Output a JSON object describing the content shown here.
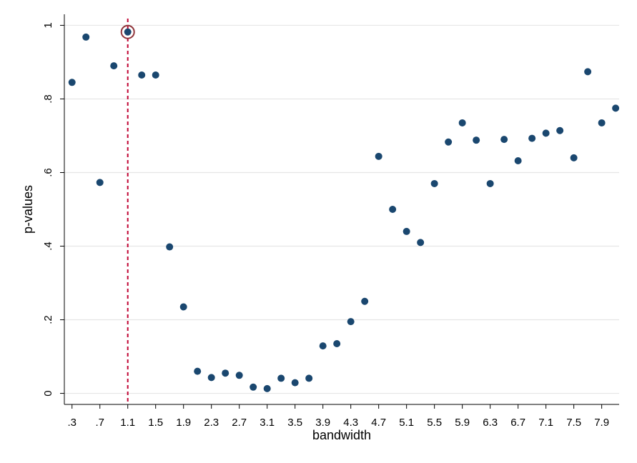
{
  "chart_data": {
    "type": "scatter",
    "xlabel": "bandwidth",
    "ylabel": "p-values",
    "xlim": [
      0.19,
      8.15
    ],
    "ylim": [
      -0.03,
      1.03
    ],
    "x_ticks": [
      {
        "value": 0.3,
        "label": ".3"
      },
      {
        "value": 0.7,
        "label": ".7"
      },
      {
        "value": 1.1,
        "label": "1.1"
      },
      {
        "value": 1.5,
        "label": "1.5"
      },
      {
        "value": 1.9,
        "label": "1.9"
      },
      {
        "value": 2.3,
        "label": "2.3"
      },
      {
        "value": 2.7,
        "label": "2.7"
      },
      {
        "value": 3.1,
        "label": "3.1"
      },
      {
        "value": 3.5,
        "label": "3.5"
      },
      {
        "value": 3.9,
        "label": "3.9"
      },
      {
        "value": 4.3,
        "label": "4.3"
      },
      {
        "value": 4.7,
        "label": "4.7"
      },
      {
        "value": 5.1,
        "label": "5.1"
      },
      {
        "value": 5.5,
        "label": "5.5"
      },
      {
        "value": 5.9,
        "label": "5.9"
      },
      {
        "value": 6.3,
        "label": "6.3"
      },
      {
        "value": 6.7,
        "label": "6.7"
      },
      {
        "value": 7.1,
        "label": "7.1"
      },
      {
        "value": 7.5,
        "label": "7.5"
      },
      {
        "value": 7.9,
        "label": "7.9"
      }
    ],
    "y_ticks": [
      {
        "value": 0,
        "label": "0"
      },
      {
        "value": 0.2,
        "label": ".2"
      },
      {
        "value": 0.4,
        "label": ".4"
      },
      {
        "value": 0.6,
        "label": ".6"
      },
      {
        "value": 0.8,
        "label": ".8"
      },
      {
        "value": 1,
        "label": "1"
      }
    ],
    "grid": "horizontal",
    "points": [
      {
        "x": 0.3,
        "y": 0.845
      },
      {
        "x": 0.5,
        "y": 0.968
      },
      {
        "x": 0.7,
        "y": 0.573
      },
      {
        "x": 0.9,
        "y": 0.89
      },
      {
        "x": 1.1,
        "y": 0.982
      },
      {
        "x": 1.3,
        "y": 0.865
      },
      {
        "x": 1.5,
        "y": 0.865
      },
      {
        "x": 1.7,
        "y": 0.398
      },
      {
        "x": 1.9,
        "y": 0.235
      },
      {
        "x": 2.1,
        "y": 0.06
      },
      {
        "x": 2.3,
        "y": 0.043
      },
      {
        "x": 2.5,
        "y": 0.055
      },
      {
        "x": 2.7,
        "y": 0.049
      },
      {
        "x": 2.9,
        "y": 0.017
      },
      {
        "x": 3.1,
        "y": 0.013
      },
      {
        "x": 3.3,
        "y": 0.041
      },
      {
        "x": 3.5,
        "y": 0.029
      },
      {
        "x": 3.7,
        "y": 0.041
      },
      {
        "x": 3.9,
        "y": 0.129
      },
      {
        "x": 4.1,
        "y": 0.135
      },
      {
        "x": 4.3,
        "y": 0.195
      },
      {
        "x": 4.5,
        "y": 0.25
      },
      {
        "x": 4.7,
        "y": 0.644
      },
      {
        "x": 4.9,
        "y": 0.5
      },
      {
        "x": 5.1,
        "y": 0.44
      },
      {
        "x": 5.3,
        "y": 0.41
      },
      {
        "x": 5.5,
        "y": 0.57
      },
      {
        "x": 5.7,
        "y": 0.683
      },
      {
        "x": 5.9,
        "y": 0.735
      },
      {
        "x": 6.1,
        "y": 0.688
      },
      {
        "x": 6.3,
        "y": 0.57
      },
      {
        "x": 6.5,
        "y": 0.69
      },
      {
        "x": 6.7,
        "y": 0.632
      },
      {
        "x": 6.9,
        "y": 0.693
      },
      {
        "x": 7.1,
        "y": 0.707
      },
      {
        "x": 7.3,
        "y": 0.714
      },
      {
        "x": 7.5,
        "y": 0.64
      },
      {
        "x": 7.7,
        "y": 0.874
      },
      {
        "x": 7.9,
        "y": 0.735
      },
      {
        "x": 8.1,
        "y": 0.775
      }
    ],
    "highlight": {
      "x": 1.1,
      "y": 0.982
    },
    "reference_line": {
      "x": 1.1
    },
    "colors": {
      "marker": "#1a476f",
      "highlight_ring": "#90353b",
      "reference_line": "#c10534",
      "grid": "#e6e6e6",
      "axis": "#000000"
    }
  }
}
